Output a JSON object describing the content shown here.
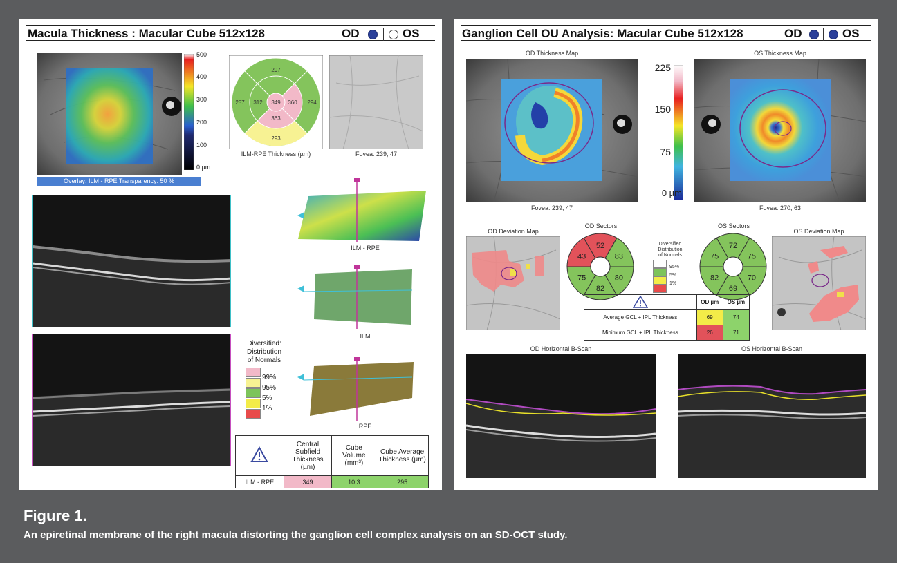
{
  "left_panel": {
    "title": "Macula Thickness : Macular Cube 512x128",
    "eye_od": "OD",
    "eye_os": "OS",
    "overlay_caption": "Overlay: ILM - RPE  Transparency: 50 %",
    "colorbar_ticks": [
      "500",
      "400",
      "300",
      "200",
      "100",
      "0 µm"
    ],
    "etdrs": {
      "superior": "297",
      "nasal_outer": "257",
      "nasal_inner": "312",
      "center": "349",
      "temporal_inner": "360",
      "temporal_outer": "294",
      "inferior_inner": "363",
      "inferior_outer": "293"
    },
    "etdrs_caption": "ILM-RPE Thickness (µm)",
    "fundus_caption": "Fovea: 239, 47",
    "surfaces": [
      "ILM - RPE",
      "ILM",
      "RPE"
    ],
    "legend": {
      "title_lines": [
        "Diversified:",
        "Distribution",
        "of Normals"
      ],
      "labels": [
        "99%",
        "95%",
        "5%",
        "1%"
      ],
      "colors": [
        "#f2b9c8",
        "#f7f293",
        "#7dc45a",
        "#f3ec48",
        "#e84b4b"
      ]
    },
    "summary": {
      "headers": [
        "Central Subfield Thickness (µm)",
        "Cube Volume (mm³)",
        "Cube Average Thickness (µm)"
      ],
      "row_label": "ILM - RPE",
      "values": [
        "349",
        "10.3",
        "295"
      ],
      "colors": [
        "#f2b9c8",
        "#8dd36b",
        "#8dd36b"
      ]
    }
  },
  "right_panel": {
    "title": "Ganglion Cell OU Analysis: Macular Cube 512x128",
    "eye_od": "OD",
    "eye_os": "OS",
    "od_map_title": "OD Thickness Map",
    "os_map_title": "OS Thickness Map",
    "colorbar_ticks": [
      "225",
      "150",
      "75",
      "0 µm"
    ],
    "od_fovea": "Fovea: 239, 47",
    "os_fovea": "Fovea: 270, 63",
    "od_dev_title": "OD Deviation Map",
    "os_dev_title": "OS Deviation Map",
    "od_sectors_title": "OD Sectors",
    "os_sectors_title": "OS Sectors",
    "od_sectors": [
      {
        "value": "52",
        "color": "#e2525a"
      },
      {
        "value": "83",
        "color": "#84c45c"
      },
      {
        "value": "80",
        "color": "#84c45c"
      },
      {
        "value": "82",
        "color": "#84c45c"
      },
      {
        "value": "75",
        "color": "#84c45c"
      },
      {
        "value": "43",
        "color": "#e2525a"
      }
    ],
    "os_sectors": [
      {
        "value": "72",
        "color": "#84c45c"
      },
      {
        "value": "75",
        "color": "#84c45c"
      },
      {
        "value": "70",
        "color": "#84c45c"
      },
      {
        "value": "69",
        "color": "#84c45c"
      },
      {
        "value": "82",
        "color": "#84c45c"
      },
      {
        "value": "75",
        "color": "#84c45c"
      }
    ],
    "legend": {
      "title_lines": [
        "Diversified",
        "Distribution",
        "of Normals"
      ],
      "labels": [
        "95%",
        "5%",
        "1%"
      ],
      "colors": [
        "#ffffff",
        "#7dc45a",
        "#f3ec48",
        "#e84b4b"
      ]
    },
    "gcl_table": {
      "headers": [
        "OD µm",
        "OS µm"
      ],
      "rows": [
        {
          "label": "Average GCL + IPL Thickness",
          "od": "69",
          "os": "74",
          "od_color": "#f3ec48",
          "os_color": "#8dd36b"
        },
        {
          "label": "Minimum GCL + IPL Thickness",
          "od": "26",
          "os": "71",
          "od_color": "#e2525a",
          "os_color": "#8dd36b"
        }
      ]
    },
    "od_bscan_title": "OD Horizontal B-Scan",
    "os_bscan_title": "OS Horizontal B-Scan"
  },
  "figure": {
    "title": "Figure 1.",
    "caption": "An epiretinal membrane of the right macula distorting the ganglion cell complex analysis on an SD-OCT study."
  }
}
